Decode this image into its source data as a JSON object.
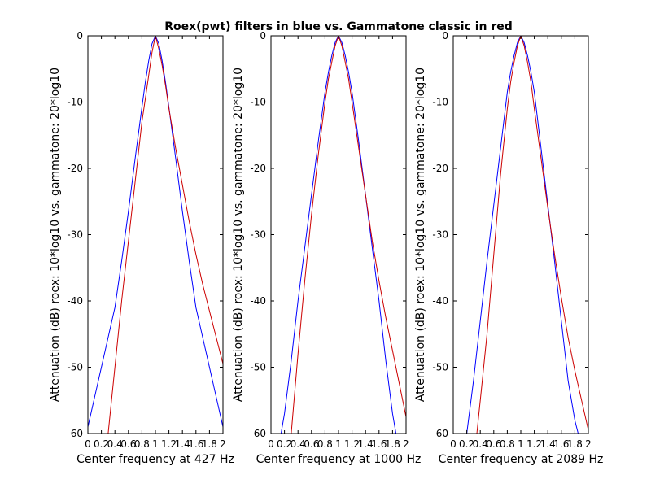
{
  "figure": {
    "title": "Roex(pwt) filters in blue vs. Gammatone classic in red"
  },
  "chart_data": [
    {
      "type": "line",
      "title": "",
      "xlabel": "Center frequency at 427 Hz",
      "ylabel": "Attenuation (dB) roex: 10*log10 vs. gammatone: 20*log10",
      "xlim": [
        0,
        2
      ],
      "ylim": [
        -60,
        0
      ],
      "xticks": [
        "0",
        "0.2",
        "0.4",
        "0.6",
        "0.8",
        "1",
        "1.2",
        "1.4",
        "1.6",
        "1.8",
        "2"
      ],
      "yticks": [
        "-60",
        "-50",
        "-40",
        "-30",
        "-20",
        "-10",
        "0"
      ],
      "grid": false,
      "series": [
        {
          "color": "#0000ff",
          "x": [
            0.0,
            0.1,
            0.2,
            0.3,
            0.4,
            0.5,
            0.6,
            0.7,
            0.8,
            0.85,
            0.9,
            0.95,
            1.0,
            1.05,
            1.1,
            1.15,
            1.2,
            1.3,
            1.4,
            1.5,
            1.6,
            1.7,
            1.8,
            1.9,
            2.0
          ],
          "y": [
            -59,
            -54.5,
            -50,
            -45.5,
            -41,
            -34,
            -26.5,
            -18.5,
            -10.8,
            -7,
            -3.8,
            -1.2,
            0,
            -1.2,
            -3.8,
            -7,
            -10.8,
            -18.5,
            -26.5,
            -34,
            -41,
            -45.5,
            -50,
            -54.5,
            -59
          ]
        },
        {
          "color": "#cc0000",
          "x": [
            0.3,
            0.4,
            0.5,
            0.6,
            0.7,
            0.8,
            0.85,
            0.9,
            0.95,
            1.0,
            1.05,
            1.1,
            1.15,
            1.2,
            1.3,
            1.4,
            1.5,
            1.6,
            1.7,
            1.8,
            1.9,
            2.0
          ],
          "y": [
            -60,
            -50,
            -40,
            -31,
            -22,
            -13,
            -9.5,
            -6,
            -2.5,
            0,
            -2,
            -4.5,
            -7.5,
            -11,
            -17,
            -22.5,
            -28,
            -33,
            -37.5,
            -41.5,
            -45.5,
            -49.5
          ]
        }
      ]
    },
    {
      "type": "line",
      "title": "",
      "xlabel": "Center frequency at 1000 Hz",
      "ylabel": "Attenuation (dB) roex: 10*log10 vs. gammatone: 20*log10",
      "xlim": [
        0,
        2
      ],
      "ylim": [
        -60,
        0
      ],
      "xticks": [
        "0",
        "0.2",
        "0.4",
        "0.6",
        "0.8",
        "1",
        "1.2",
        "1.4",
        "1.6",
        "1.8",
        "2"
      ],
      "yticks": [
        "-60",
        "-50",
        "-40",
        "-30",
        "-20",
        "-10",
        "0"
      ],
      "grid": false,
      "series": [
        {
          "color": "#0000ff",
          "x": [
            0.15,
            0.2,
            0.3,
            0.4,
            0.5,
            0.6,
            0.7,
            0.8,
            0.85,
            0.9,
            0.95,
            1.0,
            1.05,
            1.1,
            1.15,
            1.2,
            1.3,
            1.4,
            1.5,
            1.6,
            1.7,
            1.8,
            1.85
          ],
          "y": [
            -60,
            -57,
            -49,
            -40,
            -32,
            -24,
            -16,
            -8.5,
            -5.5,
            -3,
            -1,
            0,
            -1,
            -3,
            -5.5,
            -8.5,
            -16,
            -24,
            -32,
            -40,
            -49,
            -57,
            -60
          ]
        },
        {
          "color": "#cc0000",
          "x": [
            0.3,
            0.4,
            0.5,
            0.6,
            0.7,
            0.8,
            0.85,
            0.9,
            0.95,
            1.0,
            1.05,
            1.1,
            1.15,
            1.2,
            1.3,
            1.4,
            1.5,
            1.6,
            1.7,
            1.8,
            1.9,
            2.0
          ],
          "y": [
            -60,
            -48,
            -37,
            -27,
            -18,
            -10,
            -6.5,
            -4,
            -1.5,
            0,
            -1.5,
            -4,
            -6.5,
            -10,
            -17,
            -24,
            -31,
            -37,
            -42.5,
            -47.5,
            -52.5,
            -57.5
          ]
        }
      ]
    },
    {
      "type": "line",
      "title": "",
      "xlabel": "Center frequency at 2089 Hz",
      "ylabel": "Attenuation (dB) roex: 10*log10 vs. gammatone: 20*log10",
      "xlim": [
        0,
        2
      ],
      "ylim": [
        -60,
        0
      ],
      "xticks": [
        "0",
        "0.2",
        "0.4",
        "0.6",
        "0.8",
        "1",
        "1.2",
        "1.4",
        "1.6",
        "1.8",
        "2"
      ],
      "yticks": [
        "-60",
        "-50",
        "-40",
        "-30",
        "-20",
        "-10",
        "0"
      ],
      "grid": false,
      "series": [
        {
          "color": "#0000ff",
          "x": [
            0.2,
            0.3,
            0.4,
            0.5,
            0.6,
            0.7,
            0.8,
            0.85,
            0.9,
            0.95,
            1.0,
            1.05,
            1.1,
            1.15,
            1.2,
            1.3,
            1.4,
            1.5,
            1.6,
            1.7,
            1.8,
            1.85
          ],
          "y": [
            -60,
            -52,
            -43,
            -34,
            -25.5,
            -17,
            -8.5,
            -5.5,
            -3,
            -1,
            0,
            -1,
            -3,
            -5.5,
            -8.5,
            -17,
            -25.5,
            -34,
            -43,
            -52,
            -58,
            -60
          ]
        },
        {
          "color": "#cc0000",
          "x": [
            0.35,
            0.4,
            0.5,
            0.6,
            0.7,
            0.8,
            0.85,
            0.9,
            0.95,
            1.0,
            1.05,
            1.1,
            1.15,
            1.2,
            1.3,
            1.4,
            1.5,
            1.6,
            1.7,
            1.8,
            1.9,
            2.0
          ],
          "y": [
            -60,
            -55,
            -45,
            -33,
            -21,
            -11,
            -7,
            -4,
            -1.5,
            0,
            -1.5,
            -4,
            -7,
            -11,
            -18.5,
            -26,
            -33,
            -39.5,
            -45.5,
            -50.5,
            -55,
            -59.5
          ]
        }
      ]
    }
  ]
}
